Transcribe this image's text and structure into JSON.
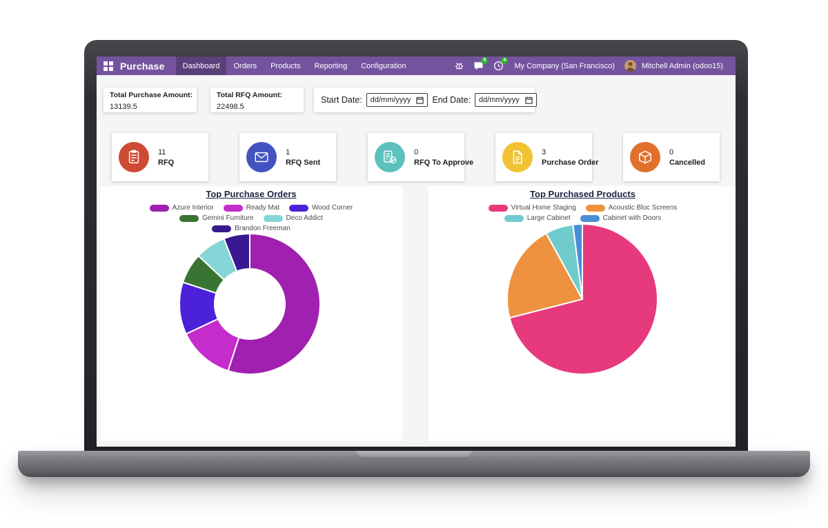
{
  "navbar": {
    "app_name": "Purchase",
    "menu": [
      {
        "label": "Dashboard",
        "active": true
      },
      {
        "label": "Orders",
        "active": false
      },
      {
        "label": "Products",
        "active": false
      },
      {
        "label": "Reporting",
        "active": false
      },
      {
        "label": "Configuration",
        "active": false
      }
    ],
    "messages_badge": "5",
    "activities_badge": "4",
    "company": "My Company (San Francisco)",
    "user": "Mitchell Admin (odoo15)"
  },
  "filters": {
    "total_purchase_label": "Total Purchase Amount:",
    "total_purchase_value": "13139.5",
    "total_rfq_label": "Total RFQ Amount:",
    "total_rfq_value": "22498.5",
    "start_date_label": "Start Date:",
    "end_date_label": "End Date:",
    "date_value": "dd/mm/yyyy"
  },
  "kpis": [
    {
      "value": "11",
      "label": "RFQ",
      "color": "#cd4a34"
    },
    {
      "value": "1",
      "label": "RFQ Sent",
      "color": "#4353c0"
    },
    {
      "value": "0",
      "label": "RFQ To Approve",
      "color": "#5cc0bd"
    },
    {
      "value": "3",
      "label": "Purchase Order",
      "color": "#f1c232"
    },
    {
      "value": "0",
      "label": "Cancelled",
      "color": "#e2702d"
    }
  ],
  "chart_data": [
    {
      "type": "pie",
      "variant": "donut",
      "title": "Top Purchase Orders",
      "labels": [
        "Azure Interior",
        "Ready Mat",
        "Wood Corner",
        "Gemini Furniture",
        "Deco Addict",
        "Brandon Freeman"
      ],
      "values": [
        55,
        13,
        12,
        7,
        7,
        6
      ],
      "values_unit": "percent_estimate",
      "colors": [
        "#a020b0",
        "#c42ccb",
        "#4b21d9",
        "#3a7432",
        "#86d5d7",
        "#38198f"
      ],
      "legend_position": "top",
      "start_angle": "top",
      "direction": "clockwise"
    },
    {
      "type": "pie",
      "variant": "pie",
      "title": "Top Purchased Products",
      "labels": [
        "Virtual Home Staging",
        "Acoustic Bloc Screens",
        "Large Cabinet",
        "Cabinet with Doors"
      ],
      "values": [
        71,
        21,
        6,
        2
      ],
      "values_unit": "percent_estimate",
      "colors": [
        "#e73a7c",
        "#ef9240",
        "#70cbcd",
        "#4b8ed8"
      ],
      "legend_position": "top",
      "start_angle": "top",
      "direction": "clockwise"
    }
  ]
}
